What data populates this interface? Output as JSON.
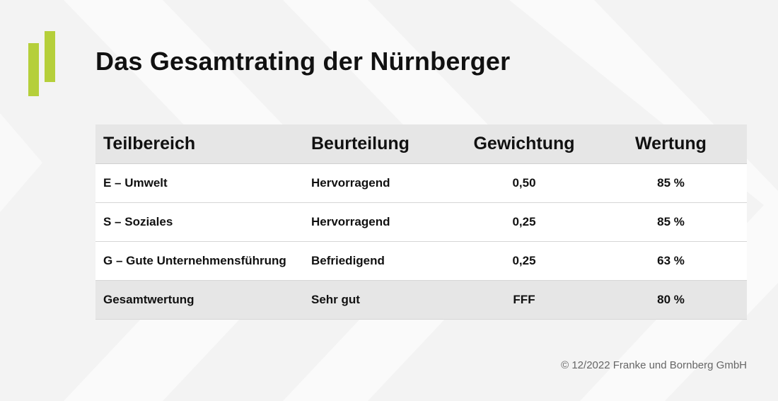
{
  "page": {
    "title": "Das Gesamtrating der Nürnberger"
  },
  "table": {
    "headers": [
      "Teilbereich",
      "Beurteilung",
      "Gewichtung",
      "Wertung"
    ],
    "rows": [
      {
        "teilbereich": "E – Umwelt",
        "beurteilung": "Hervorragend",
        "gewichtung": "0,50",
        "wertung": "85 %"
      },
      {
        "teilbereich": "S – Soziales",
        "beurteilung": "Hervorragend",
        "gewichtung": "0,25",
        "wertung": "85 %"
      },
      {
        "teilbereich": "G – Gute Unternehmensführung",
        "beurteilung": "Befriedigend",
        "gewichtung": "0,25",
        "wertung": "63 %"
      }
    ],
    "total": {
      "teilbereich": "Gesamtwertung",
      "beurteilung": "Sehr gut",
      "gewichtung": "FFF",
      "wertung": "80 %"
    }
  },
  "footer": {
    "copyright": "© 12/2022 Franke und Bornberg GmbH"
  },
  "colors": {
    "accent": "#b5cf3a",
    "header_bg": "#e6e6e6",
    "background": "#f3f3f3"
  }
}
